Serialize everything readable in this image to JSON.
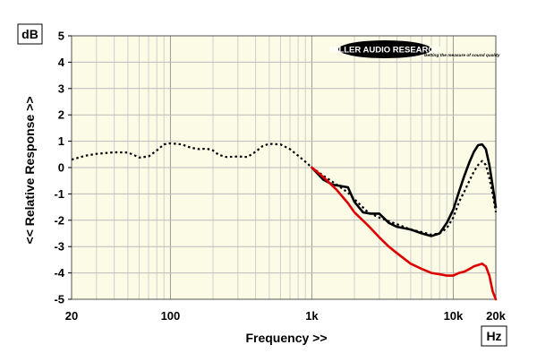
{
  "chart_data": {
    "type": "line",
    "xlabel": "Frequency >>",
    "ylabel": "<< Relative Response >>",
    "x_unit": "Hz",
    "y_unit": "dB",
    "x_scale": "log",
    "xlim": [
      20,
      20000
    ],
    "ylim": [
      -5,
      5
    ],
    "grid": true,
    "x_ticks": [
      {
        "value": 20,
        "label": "20"
      },
      {
        "value": 100,
        "label": "100"
      },
      {
        "value": 1000,
        "label": "1k"
      },
      {
        "value": 10000,
        "label": "10k"
      },
      {
        "value": 20000,
        "label": "20k"
      }
    ],
    "y_ticks": [
      5,
      4,
      3,
      2,
      1,
      0,
      -1,
      -2,
      -3,
      -4,
      -5
    ],
    "series": [
      {
        "color": "#000000",
        "style": "dotted",
        "points": [
          [
            20,
            0.3
          ],
          [
            25,
            0.45
          ],
          [
            30,
            0.52
          ],
          [
            40,
            0.58
          ],
          [
            50,
            0.57
          ],
          [
            55,
            0.48
          ],
          [
            60,
            0.38
          ],
          [
            70,
            0.42
          ],
          [
            80,
            0.65
          ],
          [
            90,
            0.88
          ],
          [
            100,
            0.92
          ],
          [
            120,
            0.88
          ],
          [
            140,
            0.75
          ],
          [
            160,
            0.7
          ],
          [
            180,
            0.72
          ],
          [
            200,
            0.65
          ],
          [
            220,
            0.48
          ],
          [
            250,
            0.4
          ],
          [
            300,
            0.42
          ],
          [
            350,
            0.4
          ],
          [
            400,
            0.6
          ],
          [
            450,
            0.82
          ],
          [
            500,
            0.9
          ],
          [
            600,
            0.88
          ],
          [
            700,
            0.7
          ],
          [
            800,
            0.45
          ],
          [
            900,
            0.22
          ],
          [
            1000,
            0.0
          ],
          [
            1200,
            -0.3
          ],
          [
            1500,
            -0.65
          ],
          [
            1800,
            -0.95
          ],
          [
            2000,
            -1.2
          ],
          [
            2500,
            -1.7
          ],
          [
            3000,
            -1.9
          ],
          [
            4000,
            -2.15
          ],
          [
            5000,
            -2.35
          ],
          [
            6000,
            -2.45
          ],
          [
            7000,
            -2.55
          ],
          [
            8000,
            -2.5
          ],
          [
            9000,
            -2.3
          ],
          [
            10000,
            -1.9
          ],
          [
            11000,
            -1.3
          ],
          [
            12000,
            -0.9
          ],
          [
            13000,
            -0.5
          ],
          [
            14000,
            -0.15
          ],
          [
            15000,
            0.1
          ],
          [
            16000,
            0.25
          ],
          [
            17000,
            0.1
          ],
          [
            18000,
            -0.4
          ],
          [
            19000,
            -1.0
          ],
          [
            20000,
            -1.7
          ]
        ]
      },
      {
        "color": "#000000",
        "style": "solid",
        "points": [
          [
            1000,
            0.0
          ],
          [
            1200,
            -0.45
          ],
          [
            1400,
            -0.65
          ],
          [
            1600,
            -0.7
          ],
          [
            1800,
            -0.75
          ],
          [
            2000,
            -1.3
          ],
          [
            2300,
            -1.7
          ],
          [
            2600,
            -1.75
          ],
          [
            3000,
            -1.75
          ],
          [
            3500,
            -2.1
          ],
          [
            4000,
            -2.25
          ],
          [
            5000,
            -2.35
          ],
          [
            6000,
            -2.5
          ],
          [
            7000,
            -2.6
          ],
          [
            8000,
            -2.5
          ],
          [
            9000,
            -2.1
          ],
          [
            10000,
            -1.6
          ],
          [
            11000,
            -0.9
          ],
          [
            12000,
            -0.3
          ],
          [
            13000,
            0.2
          ],
          [
            14000,
            0.6
          ],
          [
            15000,
            0.85
          ],
          [
            16000,
            0.88
          ],
          [
            17000,
            0.7
          ],
          [
            18000,
            0.1
          ],
          [
            19000,
            -0.7
          ],
          [
            20000,
            -1.5
          ]
        ]
      },
      {
        "color": "#dd0000",
        "style": "solid",
        "points": [
          [
            1000,
            0.0
          ],
          [
            1200,
            -0.35
          ],
          [
            1500,
            -0.85
          ],
          [
            1800,
            -1.35
          ],
          [
            2000,
            -1.7
          ],
          [
            2500,
            -2.2
          ],
          [
            3000,
            -2.65
          ],
          [
            3500,
            -3.0
          ],
          [
            4000,
            -3.25
          ],
          [
            5000,
            -3.65
          ],
          [
            6000,
            -3.85
          ],
          [
            7000,
            -4.0
          ],
          [
            8000,
            -4.05
          ],
          [
            9000,
            -4.1
          ],
          [
            10000,
            -4.1
          ],
          [
            11000,
            -4.0
          ],
          [
            12000,
            -3.95
          ],
          [
            13000,
            -3.85
          ],
          [
            14000,
            -3.75
          ],
          [
            15000,
            -3.7
          ],
          [
            16000,
            -3.65
          ],
          [
            17000,
            -3.75
          ],
          [
            18000,
            -4.1
          ],
          [
            19000,
            -4.7
          ],
          [
            20000,
            -5.0
          ]
        ]
      }
    ]
  },
  "logo": {
    "name": "MILLER AUDIO RESEARCH",
    "tagline": "Getting the measure of sound quality"
  }
}
